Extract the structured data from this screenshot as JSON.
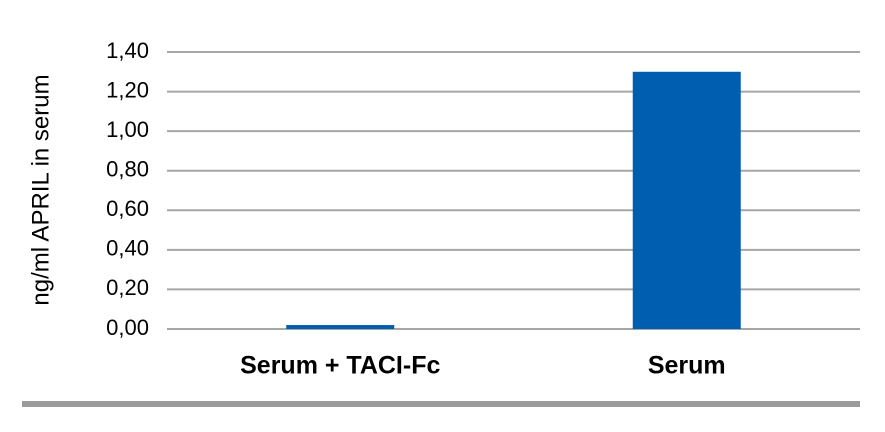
{
  "chart_data": {
    "type": "bar",
    "y_label": "ng/ml APRIL in serum",
    "categories": [
      "Serum + TACI-Fc",
      "Serum"
    ],
    "values": [
      0.02,
      1.3
    ],
    "color": "#005eb0",
    "ylim": [
      0,
      1.4
    ],
    "yticks": [
      {
        "value": 0,
        "label": "0,00"
      },
      {
        "value": 0.2,
        "label": "0,20"
      },
      {
        "value": 0.4,
        "label": "0,40"
      },
      {
        "value": 0.6,
        "label": "0,60"
      },
      {
        "value": 0.8,
        "label": "0,80"
      },
      {
        "value": 1.0,
        "label": "1,00"
      },
      {
        "value": 1.2,
        "label": "1,20"
      },
      {
        "value": 1.4,
        "label": "1,40"
      }
    ],
    "grid": true
  }
}
